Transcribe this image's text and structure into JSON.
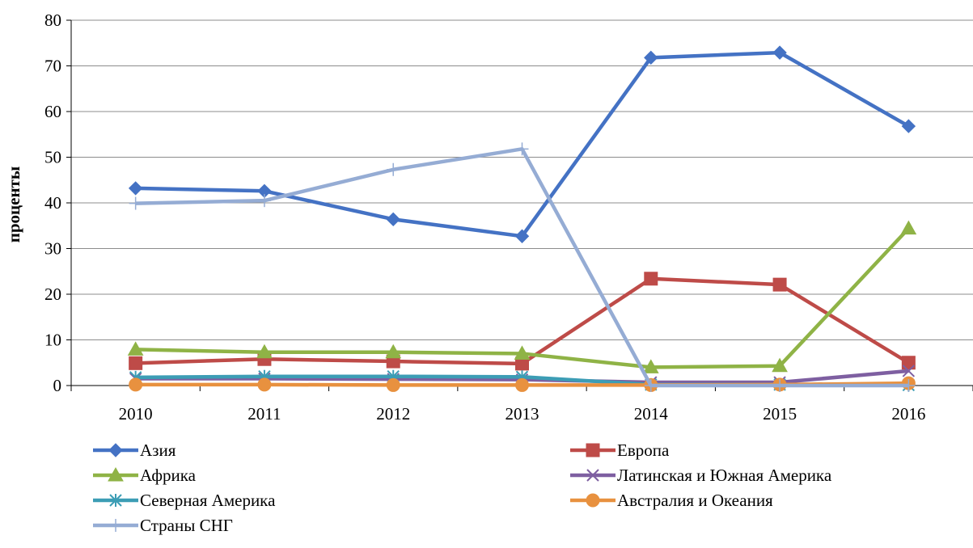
{
  "chart_data": {
    "type": "line",
    "title": "",
    "xlabel": "",
    "ylabel": "проценты",
    "ylim": [
      0,
      80
    ],
    "yticks": [
      0,
      10,
      20,
      30,
      40,
      50,
      60,
      70,
      80
    ],
    "grid": "horizontal",
    "legend_position": "bottom",
    "categories": [
      "2010",
      "2011",
      "2012",
      "2013",
      "2014",
      "2015",
      "2016"
    ],
    "series": [
      {
        "name": "Азия",
        "color": "#4472C4",
        "marker": "diamond",
        "values": [
          43.2,
          42.6,
          36.4,
          32.7,
          71.8,
          72.9,
          56.8
        ]
      },
      {
        "name": "Европа",
        "color": "#BE4B48",
        "marker": "square",
        "values": [
          4.9,
          5.8,
          5.3,
          4.8,
          23.4,
          22.1,
          5.0
        ]
      },
      {
        "name": "Африка",
        "color": "#8FB346",
        "marker": "triangle",
        "values": [
          7.9,
          7.3,
          7.3,
          7.0,
          4.0,
          4.3,
          34.4
        ]
      },
      {
        "name": "Латинская и Южная Америка",
        "color": "#7E5FA1",
        "marker": "x",
        "values": [
          1.5,
          1.5,
          1.4,
          1.3,
          0.7,
          0.7,
          3.2
        ]
      },
      {
        "name": "Северная Америка",
        "color": "#3C9DB5",
        "marker": "asterisk",
        "values": [
          1.8,
          2.0,
          2.0,
          1.9,
          0.2,
          0.2,
          0.1
        ]
      },
      {
        "name": "Австралия и Океания",
        "color": "#E8913F",
        "marker": "circle",
        "values": [
          0.2,
          0.2,
          0.1,
          0.1,
          0.1,
          0.2,
          0.5
        ]
      },
      {
        "name": "Страны СНГ",
        "color": "#95ACD4",
        "marker": "plus",
        "values": [
          39.9,
          40.5,
          47.3,
          51.8,
          0.0,
          0.0,
          0.0
        ]
      }
    ]
  }
}
